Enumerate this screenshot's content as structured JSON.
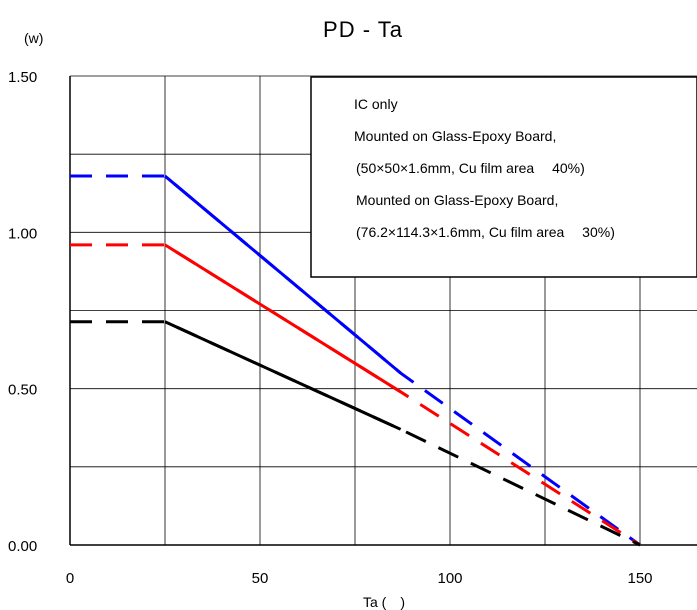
{
  "chart_data": {
    "type": "line",
    "title": "PD - Ta",
    "ylabel": "(w)",
    "xlabel": "Ta (　)",
    "xlim": [
      0,
      165
    ],
    "ylim": [
      0,
      1.5
    ],
    "x_ticks": [
      0,
      50,
      100,
      150
    ],
    "y_ticks": [
      0.0,
      0.5,
      1.0,
      1.5
    ],
    "y_tick_labels": [
      "0.00",
      "0.50",
      "1.00",
      "1.50"
    ],
    "grid": true,
    "series": [
      {
        "color": "#0000ff",
        "solid": [
          [
            25,
            1.18
          ],
          [
            87,
            0.55
          ]
        ],
        "dashed": [
          [
            0,
            1.18
          ],
          [
            25,
            1.18
          ],
          [
            87,
            0.55
          ],
          [
            150,
            0.0
          ]
        ]
      },
      {
        "color": "#ff0000",
        "solid": [
          [
            25,
            0.96
          ],
          [
            87,
            0.49
          ]
        ],
        "dashed": [
          [
            0,
            0.96
          ],
          [
            25,
            0.96
          ],
          [
            87,
            0.49
          ],
          [
            150,
            0.0
          ]
        ]
      },
      {
        "color": "#000000",
        "solid": [
          [
            25,
            0.714
          ],
          [
            87,
            0.37
          ]
        ],
        "dashed": [
          [
            0,
            0.714
          ],
          [
            25,
            0.714
          ],
          [
            87,
            0.37
          ],
          [
            150,
            0.0
          ]
        ]
      }
    ],
    "legend": {
      "placement": "top-right",
      "lines": [
        "IC only",
        "Mounted on Glass-Epoxy Board,",
        "(50×50×1.6mm, Cu film area　 40%)",
        "Mounted on Glass-Epoxy Board,",
        "(76.2×114.3×1.6mm, Cu film area　 30%)"
      ]
    }
  }
}
